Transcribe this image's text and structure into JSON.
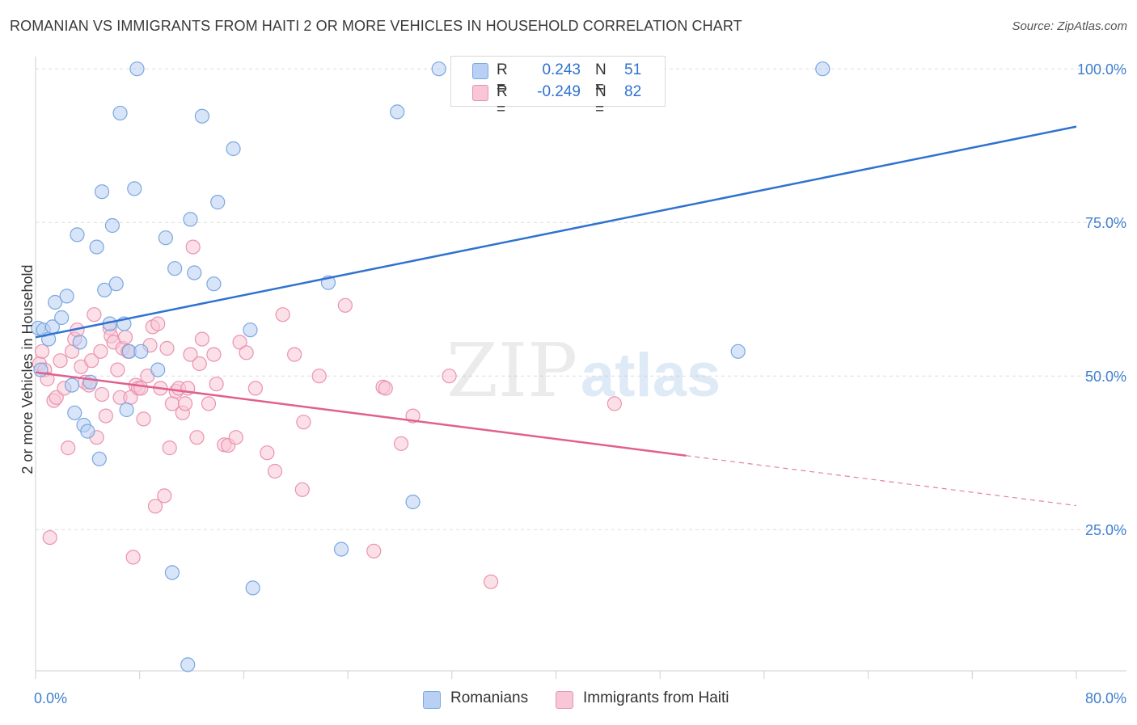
{
  "title": "ROMANIAN VS IMMIGRANTS FROM HAITI 2 OR MORE VEHICLES IN HOUSEHOLD CORRELATION CHART",
  "source": "Source: ZipAtlas.com",
  "watermark": {
    "zip": "ZIP",
    "atlas": "atlas"
  },
  "legend": {
    "r_label": "R =",
    "n_label": "N =",
    "rows": [
      {
        "r": "0.243",
        "n": "51"
      },
      {
        "r": "-0.249",
        "n": "82"
      }
    ]
  },
  "colors": {
    "romanians_fill": "#b8d0f3",
    "romanians_stroke": "#7ba7e0",
    "romanians_line": "#2f72d0",
    "haiti_fill": "#f8c6d6",
    "haiti_stroke": "#eb92b0",
    "haiti_line": "#e0608e",
    "tick_label": "#3f7fd0",
    "grid": "#dedede"
  },
  "chart_data": {
    "type": "scatter",
    "title": "ROMANIAN VS IMMIGRANTS FROM HAITI 2 OR MORE VEHICLES IN HOUSEHOLD CORRELATION CHART",
    "xlabel": "",
    "ylabel": "2 or more Vehicles in Household",
    "xlim": [
      0,
      80
    ],
    "ylim": [
      2,
      102
    ],
    "x_tick_labels": [
      "0.0%",
      "80.0%"
    ],
    "y_ticks": [
      25,
      50,
      75,
      100
    ],
    "y_tick_labels": [
      "25.0%",
      "50.0%",
      "75.0%",
      "100.0%"
    ],
    "grid": true,
    "legend_position": "bottom",
    "series": [
      {
        "name": "Romanians",
        "r": 0.243,
        "n": 51,
        "trend": {
          "x": [
            0,
            80
          ],
          "y": [
            56.3,
            90.6
          ],
          "solid_until_x": 80
        },
        "points": [
          [
            0.2,
            57.8
          ],
          [
            0.4,
            51.0
          ],
          [
            0.6,
            57.5
          ],
          [
            1.0,
            56.0
          ],
          [
            1.3,
            58.0
          ],
          [
            1.5,
            62.0
          ],
          [
            2.0,
            59.5
          ],
          [
            2.4,
            63.0
          ],
          [
            2.8,
            48.5
          ],
          [
            3.0,
            44.0
          ],
          [
            3.2,
            73.0
          ],
          [
            3.4,
            55.5
          ],
          [
            3.7,
            42.0
          ],
          [
            4.0,
            41.0
          ],
          [
            4.2,
            49.0
          ],
          [
            4.7,
            71.0
          ],
          [
            4.9,
            36.5
          ],
          [
            5.1,
            80.0
          ],
          [
            5.3,
            64.0
          ],
          [
            5.7,
            58.5
          ],
          [
            5.9,
            74.5
          ],
          [
            6.2,
            65.0
          ],
          [
            6.5,
            92.8
          ],
          [
            6.8,
            58.5
          ],
          [
            7.0,
            44.5
          ],
          [
            7.2,
            54.0
          ],
          [
            7.6,
            80.5
          ],
          [
            7.8,
            100.0
          ],
          [
            8.1,
            54.0
          ],
          [
            9.4,
            51.0
          ],
          [
            10.0,
            72.5
          ],
          [
            10.5,
            18.0
          ],
          [
            10.7,
            67.5
          ],
          [
            11.7,
            3.0
          ],
          [
            11.9,
            75.5
          ],
          [
            12.2,
            66.8
          ],
          [
            12.8,
            92.3
          ],
          [
            13.7,
            65.0
          ],
          [
            14.0,
            78.3
          ],
          [
            15.2,
            87.0
          ],
          [
            16.5,
            57.5
          ],
          [
            16.7,
            15.5
          ],
          [
            22.5,
            65.2
          ],
          [
            23.5,
            21.8
          ],
          [
            27.8,
            93.0
          ],
          [
            29.0,
            29.5
          ],
          [
            31.0,
            100.0
          ],
          [
            54.0,
            54.0
          ],
          [
            60.5,
            100.0
          ]
        ]
      },
      {
        "name": "Immigrants from Haiti",
        "r": -0.249,
        "n": 82,
        "trend": {
          "x": [
            0,
            80
          ],
          "y": [
            50.6,
            28.9
          ],
          "solid_until_x": 50
        },
        "points": [
          [
            0.3,
            52.0
          ],
          [
            0.5,
            54.0
          ],
          [
            0.7,
            51.0
          ],
          [
            0.9,
            49.5
          ],
          [
            1.1,
            23.7
          ],
          [
            1.4,
            46.0
          ],
          [
            1.6,
            46.5
          ],
          [
            1.9,
            52.5
          ],
          [
            2.2,
            48.0
          ],
          [
            2.5,
            38.3
          ],
          [
            2.8,
            54.0
          ],
          [
            3.0,
            56.0
          ],
          [
            3.2,
            57.5
          ],
          [
            3.5,
            51.5
          ],
          [
            3.8,
            49.0
          ],
          [
            4.1,
            48.5
          ],
          [
            4.3,
            52.5
          ],
          [
            4.5,
            60.0
          ],
          [
            4.7,
            40.0
          ],
          [
            5.0,
            54.0
          ],
          [
            5.1,
            47.0
          ],
          [
            5.4,
            43.5
          ],
          [
            5.7,
            57.8
          ],
          [
            5.8,
            56.5
          ],
          [
            6.0,
            55.5
          ],
          [
            6.3,
            51.0
          ],
          [
            6.5,
            46.5
          ],
          [
            6.7,
            54.5
          ],
          [
            6.9,
            56.3
          ],
          [
            7.1,
            54.0
          ],
          [
            7.3,
            46.5
          ],
          [
            7.5,
            20.5
          ],
          [
            7.7,
            48.5
          ],
          [
            7.9,
            48.0
          ],
          [
            8.1,
            48.0
          ],
          [
            8.3,
            43.0
          ],
          [
            8.6,
            50.0
          ],
          [
            8.8,
            55.0
          ],
          [
            9.0,
            58.0
          ],
          [
            9.2,
            28.8
          ],
          [
            9.4,
            58.5
          ],
          [
            9.6,
            48.0
          ],
          [
            9.9,
            30.5
          ],
          [
            10.1,
            54.5
          ],
          [
            10.3,
            38.3
          ],
          [
            10.5,
            45.5
          ],
          [
            10.8,
            47.5
          ],
          [
            11.0,
            48.0
          ],
          [
            11.3,
            44.0
          ],
          [
            11.5,
            45.5
          ],
          [
            11.7,
            48.0
          ],
          [
            11.9,
            53.5
          ],
          [
            12.1,
            71.0
          ],
          [
            12.4,
            40.0
          ],
          [
            12.6,
            52.0
          ],
          [
            12.8,
            56.0
          ],
          [
            13.3,
            45.5
          ],
          [
            13.7,
            53.5
          ],
          [
            13.9,
            48.7
          ],
          [
            14.5,
            38.8
          ],
          [
            14.8,
            38.7
          ],
          [
            15.4,
            40.0
          ],
          [
            15.7,
            55.5
          ],
          [
            16.2,
            53.8
          ],
          [
            16.9,
            48.0
          ],
          [
            17.8,
            37.5
          ],
          [
            18.4,
            34.5
          ],
          [
            19.0,
            60.0
          ],
          [
            19.9,
            53.5
          ],
          [
            20.5,
            31.5
          ],
          [
            20.6,
            42.5
          ],
          [
            21.8,
            50.0
          ],
          [
            23.8,
            61.5
          ],
          [
            26.0,
            21.5
          ],
          [
            26.7,
            48.2
          ],
          [
            26.9,
            48.0
          ],
          [
            28.1,
            39.0
          ],
          [
            29.0,
            43.5
          ],
          [
            31.8,
            50.0
          ],
          [
            35.0,
            16.5
          ],
          [
            44.5,
            45.5
          ]
        ]
      }
    ]
  }
}
